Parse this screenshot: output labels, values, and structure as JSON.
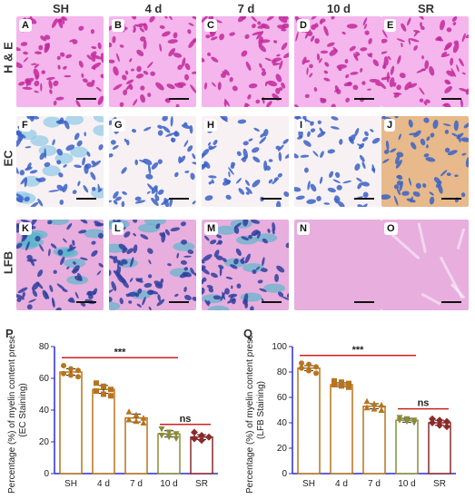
{
  "columns": [
    "SH",
    "4 d",
    "7 d",
    "10 d",
    "SR"
  ],
  "rows": [
    {
      "label": "H & E",
      "panels": [
        "A",
        "B",
        "C",
        "D",
        "E"
      ],
      "kind": "he"
    },
    {
      "label": "EC",
      "panels": [
        "F",
        "G",
        "H",
        "I",
        "J"
      ],
      "kind": "ec"
    },
    {
      "label": "LFB",
      "panels": [
        "K",
        "L",
        "M",
        "N",
        "O"
      ],
      "kind": "lfb"
    }
  ],
  "colors": {
    "he_bg": "#f4b6ec",
    "he_cell": "#c2299b",
    "ec_bg": "#f7f1f4",
    "ec_cell": "#3a62c6",
    "ec_tan": "#e7b98b",
    "lfb_bg": "#e7aede",
    "lfb_cell": "#2f3f9e",
    "lfb_cyan": "#46b8c8",
    "axis": "#2b2bd0",
    "signif": "#d02020"
  },
  "chart_data": [
    {
      "id": "P",
      "type": "bar",
      "categories": [
        "SH",
        "4 d",
        "7 d",
        "10 d",
        "SR"
      ],
      "values": [
        64,
        53,
        35,
        25,
        23
      ],
      "errors": [
        2,
        2.5,
        2.5,
        2,
        1.5
      ],
      "points": [
        [
          68,
          66,
          65,
          63,
          62,
          61
        ],
        [
          57,
          55,
          53,
          52,
          50,
          49
        ],
        [
          39,
          37,
          35,
          34,
          33,
          32
        ],
        [
          28,
          26,
          25,
          24,
          23,
          22
        ],
        [
          26,
          24,
          23,
          22,
          21
        ]
      ],
      "ylim": [
        0,
        80
      ],
      "yticks": [
        0,
        20,
        40,
        60,
        80
      ],
      "ylabel": "Percentage (%) of myelin content present",
      "ylabel2": "(EC Staining)",
      "colors": [
        "#b8741d",
        "#b8741d",
        "#b8741d",
        "#8b8b3a",
        "#8b2a2a"
      ],
      "annotations": [
        {
          "text": "***",
          "from": 0,
          "to": 3,
          "y": 73
        },
        {
          "text": "ns",
          "from": 3,
          "to": 4,
          "y": 31
        }
      ]
    },
    {
      "id": "Q",
      "type": "bar",
      "categories": [
        "SH",
        "4 d",
        "7 d",
        "10 d",
        "SR"
      ],
      "values": [
        83,
        70,
        53,
        42,
        40
      ],
      "errors": [
        2,
        1.5,
        2,
        1.5,
        2
      ],
      "points": [
        [
          87,
          86,
          84,
          83,
          81,
          79
        ],
        [
          73,
          72,
          71,
          70,
          69,
          68
        ],
        [
          57,
          55,
          54,
          52,
          51,
          50
        ],
        [
          44,
          43,
          42,
          42,
          41,
          40
        ],
        [
          43,
          42,
          41,
          40,
          38,
          37
        ]
      ],
      "ylim": [
        0,
        100
      ],
      "yticks": [
        0,
        20,
        40,
        60,
        80,
        100
      ],
      "ylabel": "Percentage (%) of myelin content present",
      "ylabel2": "(LFB Staining)",
      "colors": [
        "#b8741d",
        "#b8741d",
        "#b8741d",
        "#8b8b3a",
        "#8b2a2a"
      ],
      "annotations": [
        {
          "text": "***",
          "from": 0,
          "to": 3,
          "y": 93
        },
        {
          "text": "ns",
          "from": 3,
          "to": 4,
          "y": 51
        }
      ]
    }
  ]
}
